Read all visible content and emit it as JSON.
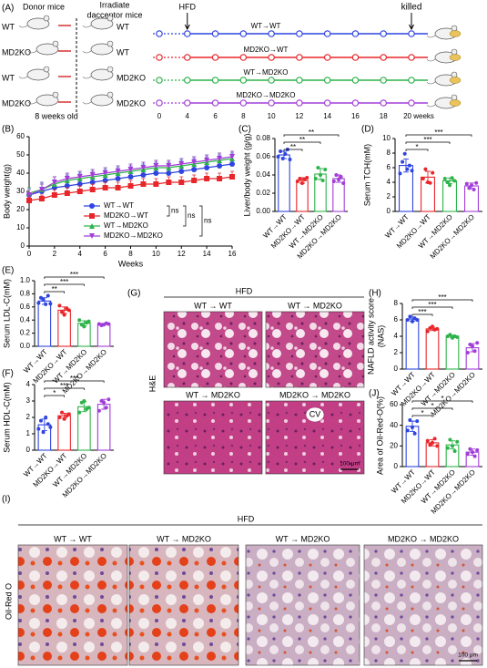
{
  "diagram": {
    "panel": "(A)",
    "donor_title": "Donor mice",
    "recipient_title": [
      "Irradiate",
      "dacceptor mice"
    ],
    "donors": [
      "WT",
      "MD2KO",
      "WT",
      "MD2KO"
    ],
    "recipients": [
      "WT",
      "WT",
      "MD2KO",
      "MD2KO"
    ],
    "age": "8 weeks old",
    "hfd": "HFD",
    "killed": "killed",
    "groups": [
      "WT→WT",
      "MD2KO→WT",
      "WT→MD2KO",
      "MD2KO→MD2KO"
    ],
    "colors": [
      "#2f45e0",
      "#e8262a",
      "#2db34a",
      "#a23ed8"
    ],
    "timeline": [
      "0",
      "4",
      "6",
      "8",
      "10",
      "12",
      "14",
      "16",
      "18",
      "20 weeks"
    ]
  },
  "chart_data": [
    {
      "type": "line",
      "panel": "(B)",
      "ylabel": "Body weight(g)",
      "xlabel": "Weeks",
      "x": [
        0,
        1,
        2,
        3,
        4,
        5,
        6,
        7,
        8,
        9,
        10,
        11,
        12,
        13,
        14,
        15,
        16
      ],
      "xlim": [
        0,
        16
      ],
      "xticks": [
        0,
        2,
        4,
        6,
        8,
        10,
        12,
        14,
        16
      ],
      "ylim": [
        0,
        60
      ],
      "yticks": [
        0,
        10,
        20,
        30,
        40,
        50,
        60
      ],
      "legend": "bottom-right",
      "legend_annotations": [
        "ns",
        "ns",
        "ns"
      ],
      "series": [
        {
          "name": "WT→WT",
          "color": "#2f45e0",
          "marker": "circle",
          "values": [
            28,
            30,
            32,
            33,
            34,
            35,
            36,
            37,
            38,
            39,
            40,
            40,
            41,
            42,
            43,
            44,
            45
          ],
          "errors": [
            4,
            5,
            6,
            6,
            6,
            6,
            6,
            6,
            6,
            6,
            6,
            6,
            6,
            6,
            6,
            6,
            6
          ]
        },
        {
          "name": "MD2KO→WT",
          "color": "#e8262a",
          "marker": "square",
          "values": [
            25,
            26,
            28,
            29,
            30,
            31,
            32,
            32,
            33,
            34,
            34,
            35,
            35,
            36,
            37,
            37,
            38
          ],
          "errors": [
            2,
            2,
            3,
            3,
            3,
            3,
            3,
            3,
            3,
            3,
            3,
            3,
            3,
            3,
            3,
            3,
            3
          ]
        },
        {
          "name": "WT→MD2KO",
          "color": "#2db34a",
          "marker": "triangle",
          "values": [
            29,
            31,
            34,
            36,
            37,
            38,
            39,
            40,
            41,
            42,
            43,
            43,
            44,
            45,
            46,
            47,
            48
          ],
          "errors": [
            3,
            3,
            4,
            4,
            4,
            4,
            4,
            4,
            4,
            4,
            4,
            4,
            4,
            4,
            4,
            4,
            4
          ]
        },
        {
          "name": "MD2KO→MD2KO",
          "color": "#a23ed8",
          "marker": "triangle-down",
          "values": [
            28,
            31,
            35,
            37,
            38,
            39,
            40,
            41,
            42,
            43,
            44,
            44,
            45,
            46,
            47,
            48,
            49
          ],
          "errors": [
            3,
            3,
            3,
            3,
            3,
            3,
            3,
            3,
            3,
            3,
            3,
            3,
            3,
            3,
            3,
            3,
            3
          ]
        }
      ]
    },
    {
      "type": "bar",
      "panel": "(C)",
      "ylabel": "Liver/body weight (g/g)",
      "categories": [
        "WT→WT",
        "MD2KO→WT",
        "WT→MD2KO",
        "MD2KO→MD2KO"
      ],
      "colors": [
        "#2f45e0",
        "#e8262a",
        "#2db34a",
        "#a23ed8"
      ],
      "values": [
        0.062,
        0.034,
        0.041,
        0.036
      ],
      "errors": [
        0.004,
        0.003,
        0.006,
        0.004
      ],
      "points": [
        [
          0.06,
          0.066,
          0.058,
          0.063,
          0.068,
          0.057
        ],
        [
          0.033,
          0.036,
          0.031,
          0.035,
          0.037
        ],
        [
          0.036,
          0.048,
          0.04,
          0.034,
          0.046
        ],
        [
          0.033,
          0.04,
          0.035,
          0.038,
          0.031
        ]
      ],
      "significance": [
        "**",
        "**",
        "**"
      ],
      "ylim": [
        0,
        0.08
      ],
      "yticks": [
        {
          "value": 0,
          "label": "0.00"
        },
        {
          "value": 0.02,
          "label": "0.02"
        },
        {
          "value": 0.04,
          "label": "0.04"
        },
        {
          "value": 0.06,
          "label": "0.06"
        },
        {
          "value": 0.08,
          "label": "0.08"
        }
      ]
    },
    {
      "type": "bar",
      "panel": "(D)",
      "ylabel": "Serum TCH(mM)",
      "categories": [
        "WT→WT",
        "MD2KO→WT",
        "WT→MD2KO",
        "MD2KO→MD2KO"
      ],
      "colors": [
        "#2f45e0",
        "#e8262a",
        "#2db34a",
        "#a23ed8"
      ],
      "values": [
        6.3,
        4.7,
        4.2,
        3.5
      ],
      "errors": [
        0.9,
        0.8,
        0.4,
        0.4
      ],
      "points": [
        [
          5.2,
          6.8,
          7.9,
          5.8,
          6.3,
          5.6
        ],
        [
          4.5,
          5.8,
          4.0,
          3.9,
          5.3
        ],
        [
          4.5,
          4.0,
          3.6,
          4.6,
          4.2
        ],
        [
          3.8,
          3.2,
          3.6,
          3.0,
          3.9
        ]
      ],
      "significance": [
        "*",
        "***",
        "***"
      ],
      "ylim": [
        0,
        10
      ],
      "yticks": [
        0,
        2,
        4,
        6,
        8,
        10
      ]
    },
    {
      "type": "bar",
      "panel": "(E)",
      "ylabel": "Serum LDL-C(mM)",
      "categories": [
        "WT→WT",
        "MD2KO→WT",
        "WT→MD2KO",
        "MD2KO→MD2KO"
      ],
      "colors": [
        "#2f45e0",
        "#e8262a",
        "#2db34a",
        "#a23ed8"
      ],
      "values": [
        0.69,
        0.55,
        0.35,
        0.34
      ],
      "errors": [
        0.05,
        0.05,
        0.04,
        0.01
      ],
      "points": [
        [
          0.66,
          0.74,
          0.71,
          0.64,
          0.77,
          0.65
        ],
        [
          0.62,
          0.52,
          0.48,
          0.58,
          0.55
        ],
        [
          0.4,
          0.33,
          0.3,
          0.36,
          0.38
        ],
        [
          0.34,
          0.32,
          0.33,
          0.35,
          0.34
        ]
      ],
      "significance": [
        "**",
        "***",
        "***"
      ],
      "ylim": [
        0,
        1
      ],
      "yticks": [
        {
          "value": 0,
          "label": "0.0"
        },
        0.2,
        0.4,
        0.6,
        0.8,
        {
          "value": 1,
          "label": "1.0"
        }
      ]
    },
    {
      "type": "bar",
      "panel": "(F)",
      "ylabel": "Serum HDL-C(mM)",
      "categories": [
        "WT→WT",
        "MD2KO→WT",
        "WT→MD2KO",
        "MD2KO→MD2KO"
      ],
      "colors": [
        "#2f45e0",
        "#e8262a",
        "#2db34a",
        "#a23ed8"
      ],
      "values": [
        1.55,
        2.1,
        2.65,
        2.8
      ],
      "errors": [
        0.35,
        0.15,
        0.3,
        0.3
      ],
      "points": [
        [
          1.3,
          1.8,
          1.1,
          2.0,
          1.6,
          1.4
        ],
        [
          2.0,
          2.3,
          1.9,
          2.1,
          2.2
        ],
        [
          2.3,
          2.9,
          3.0,
          2.5,
          2.6
        ],
        [
          2.4,
          3.0,
          2.9,
          2.6,
          3.1
        ]
      ],
      "significance": [
        "*",
        "***",
        "***"
      ],
      "ylim": [
        0,
        4
      ],
      "yticks": [
        0,
        1,
        2,
        3,
        4
      ]
    },
    {
      "type": "bar",
      "panel": "(H)",
      "ylabel": "NAFLD activity score",
      "ylabel_line2": "(NAS)",
      "categories": [
        "WT→WT",
        "MD2KO→WT",
        "WT→MD2KO",
        "MD2KO→MD2KO"
      ],
      "colors": [
        "#2f45e0",
        "#e8262a",
        "#2db34a",
        "#a23ed8"
      ],
      "values": [
        6.1,
        4.9,
        4.0,
        2.6
      ],
      "errors": [
        0.25,
        0.2,
        0.15,
        0.5
      ],
      "points": [
        [
          6.0,
          6.4,
          5.8,
          6.2,
          6.0
        ],
        [
          4.6,
          5.0,
          5.2,
          4.8,
          4.9
        ],
        [
          4.0,
          4.2,
          3.8,
          4.0,
          3.9
        ],
        [
          2.0,
          3.0,
          2.8,
          2.2,
          3.2
        ]
      ],
      "significance": [
        "***",
        "***",
        "***"
      ],
      "ylim": [
        0,
        8
      ],
      "yticks": [
        0,
        2,
        4,
        6,
        8
      ]
    },
    {
      "type": "bar",
      "panel": "(J)",
      "ylabel": "Area of Oil-Red-O(%)",
      "categories": [
        "WT→WT",
        "MD2KO→WT",
        "WT→MD2KO",
        "MD2KO→MD2KO"
      ],
      "colors": [
        "#2f45e0",
        "#e8262a",
        "#2db34a",
        "#a23ed8"
      ],
      "values": [
        39,
        23,
        21,
        14
      ],
      "errors": [
        5,
        3,
        4,
        3
      ],
      "points": [
        [
          35,
          45,
          38,
          32,
          44
        ],
        [
          25,
          21,
          23,
          27,
          20
        ],
        [
          18,
          26,
          20,
          15,
          24
        ],
        [
          12,
          17,
          14,
          10,
          16
        ]
      ],
      "significance": [
        "*",
        "*",
        "*"
      ],
      "ylim": [
        0,
        60
      ],
      "yticks": [
        0,
        20,
        40,
        60
      ]
    }
  ],
  "images": {
    "he": {
      "panel": "(G)",
      "header": "HFD",
      "side": "H&E",
      "titles": [
        "WT → WT",
        "WT → MD2KO",
        "WT →  MD2KO",
        "MD2KO → MD2KO"
      ],
      "cv": "CV",
      "scale": "100 μm"
    },
    "oil": {
      "panel": "(I)",
      "header": "HFD",
      "side": "Oil-Red O",
      "titles": [
        "WT → WT",
        "WT → MD2KO",
        "WT →  MD2KO",
        "MD2KO → MD2KO"
      ],
      "scale": "100 μm"
    }
  }
}
